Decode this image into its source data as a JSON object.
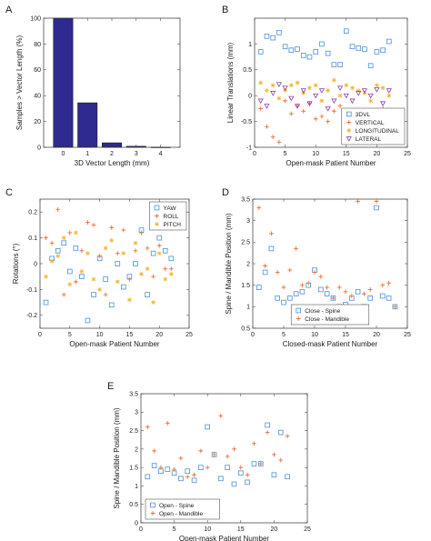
{
  "figure": {
    "panel_labels": [
      "A",
      "B",
      "C",
      "D",
      "E"
    ]
  },
  "colors": {
    "bar": "#2e2a8f",
    "spine": "#4a90d9",
    "mandible": "#e8703a",
    "threeDVL": "#4a90d9",
    "vertical": "#e8703a",
    "longitudinal": "#f0b429",
    "lateral": "#8a3fa8",
    "yaw": "#4a90d9",
    "roll": "#e8703a",
    "pitch": "#f0b429",
    "gray": "#888888"
  },
  "chart_data": [
    {
      "id": "A",
      "type": "bar",
      "xlabel": "3D Vector Length (mm)",
      "ylabel": "Samples > Vector Length (%)",
      "categories": [
        "0",
        "1",
        "2",
        "3",
        "4"
      ],
      "values": [
        100,
        34.5,
        3.5,
        0.8,
        0.1
      ],
      "xticks": [
        0,
        1,
        2,
        3,
        4
      ],
      "yticks": [
        0,
        20,
        40,
        60,
        80,
        100
      ],
      "ylim": [
        0,
        100
      ],
      "xlim": [
        -0.8,
        4.8
      ]
    },
    {
      "id": "B",
      "type": "scatter",
      "xlabel": "Open-mask Patient Number",
      "ylabel": "Linear Translations (mm)",
      "xlim": [
        0,
        25
      ],
      "ylim": [
        -1,
        1.5
      ],
      "xticks": [
        0,
        5,
        10,
        15,
        20,
        25
      ],
      "yticks": [
        -1,
        -0.5,
        0,
        0.5,
        1
      ],
      "legend_position": "bottom-right",
      "series": [
        {
          "name": "3DVL",
          "marker": "square",
          "color_key": "threeDVL",
          "x": [
            1,
            2,
            3,
            4,
            5,
            6,
            7,
            8,
            9,
            10,
            11,
            12,
            13,
            14,
            15,
            16,
            17,
            18,
            19,
            20,
            21,
            22
          ],
          "y": [
            0.85,
            1.15,
            1.12,
            1.22,
            0.95,
            0.88,
            0.9,
            0.78,
            0.75,
            0.85,
            1.0,
            0.82,
            0.6,
            0.6,
            1.25,
            0.95,
            0.92,
            0.9,
            0.58,
            0.85,
            0.88,
            1.05
          ]
        },
        {
          "name": "VERTICAL",
          "marker": "plus",
          "color_key": "vertical",
          "x": [
            1,
            2,
            3,
            4,
            5,
            6,
            7,
            8,
            9,
            10,
            11,
            12,
            13,
            14,
            15,
            16,
            17,
            18,
            19,
            20,
            21,
            22
          ],
          "y": [
            -0.25,
            -0.6,
            -0.8,
            -0.9,
            -0.1,
            -0.35,
            -0.2,
            -0.3,
            -0.15,
            -0.45,
            -0.4,
            -0.5,
            -0.3,
            -0.2,
            -0.35,
            -0.65,
            -0.4,
            -0.3,
            -0.45,
            -0.5,
            -0.25,
            -0.3
          ]
        },
        {
          "name": "LONGITUDINAL",
          "marker": "star",
          "color_key": "longitudinal",
          "x": [
            1,
            2,
            3,
            4,
            5,
            6,
            7,
            8,
            9,
            10,
            11,
            12,
            13,
            14,
            15,
            16,
            17,
            18,
            19,
            20,
            21,
            22
          ],
          "y": [
            0.25,
            0.1,
            0.2,
            -0.05,
            0.1,
            0.2,
            0.25,
            0.05,
            0.15,
            0.2,
            -0.1,
            0.1,
            0.3,
            0.0,
            0.2,
            0.15,
            0.1,
            0.05,
            -0.1,
            0.2,
            0.15,
            0.0
          ]
        },
        {
          "name": "LATERAL",
          "marker": "triangle-down",
          "color_key": "lateral",
          "x": [
            1,
            2,
            3,
            4,
            5,
            6,
            7,
            8,
            9,
            10,
            11,
            12,
            13,
            14,
            15,
            16,
            17,
            18,
            19,
            20,
            21,
            22
          ],
          "y": [
            -0.1,
            -0.2,
            0.05,
            0.22,
            0.15,
            -0.05,
            -0.2,
            0.1,
            -0.15,
            0.0,
            0.1,
            -0.25,
            -0.1,
            0.15,
            0.0,
            -0.1,
            0.05,
            0.1,
            0.0,
            0.12,
            -0.15,
            0.1
          ]
        }
      ]
    },
    {
      "id": "C",
      "type": "scatter",
      "xlabel": "Open-mask Patient Number",
      "ylabel": "Rotations (°)",
      "xlim": [
        0,
        25
      ],
      "ylim": [
        -0.25,
        0.25
      ],
      "xticks": [
        0,
        5,
        10,
        15,
        20,
        25
      ],
      "yticks": [
        -0.2,
        -0.1,
        0,
        0.1,
        0.2
      ],
      "legend_position": "top-right",
      "series": [
        {
          "name": "YAW",
          "marker": "square",
          "color_key": "yaw",
          "x": [
            1,
            2,
            3,
            4,
            5,
            6,
            7,
            8,
            9,
            10,
            11,
            12,
            13,
            14,
            15,
            16,
            17,
            18,
            19,
            20,
            21,
            22
          ],
          "y": [
            -0.15,
            0.02,
            0.05,
            0.08,
            -0.03,
            0.06,
            -0.05,
            -0.22,
            -0.12,
            0.02,
            -0.06,
            -0.16,
            0.0,
            -0.09,
            -0.05,
            0.0,
            0.13,
            -0.12,
            0.04,
            0.1,
            0.05,
            0.02
          ]
        },
        {
          "name": "ROLL",
          "marker": "plus",
          "color_key": "roll",
          "x": [
            1,
            2,
            3,
            4,
            5,
            6,
            7,
            8,
            9,
            10,
            11,
            12,
            13,
            14,
            15,
            16,
            17,
            18,
            19,
            20,
            21,
            22
          ],
          "y": [
            0.1,
            0.08,
            0.21,
            -0.12,
            0.12,
            -0.07,
            0.05,
            0.16,
            0.15,
            0.03,
            -0.12,
            0.14,
            0.04,
            0.13,
            -0.06,
            0.05,
            0.12,
            0.06,
            -0.05,
            0.07,
            -0.02,
            -0.02
          ]
        },
        {
          "name": "PITCH",
          "marker": "star",
          "color_key": "pitch",
          "x": [
            1,
            2,
            3,
            4,
            5,
            6,
            7,
            8,
            9,
            10,
            11,
            12,
            13,
            14,
            15,
            16,
            17,
            18,
            19,
            20,
            21,
            22
          ],
          "y": [
            -0.05,
            0.01,
            0.03,
            0.1,
            -0.08,
            0.12,
            -0.03,
            0.04,
            -0.06,
            -0.1,
            0.06,
            0.09,
            -0.07,
            0.04,
            -0.14,
            0.08,
            -0.04,
            -0.02,
            -0.15,
            0.04,
            -0.06,
            -0.04
          ]
        }
      ]
    },
    {
      "id": "D",
      "type": "scatter",
      "xlabel": "Closed-mask Patient Number",
      "ylabel": "Spine / Mandible Position (mm)",
      "xlim": [
        0,
        25
      ],
      "ylim": [
        0.5,
        3.5
      ],
      "xticks": [
        0,
        5,
        10,
        15,
        20,
        25
      ],
      "yticks": [
        0.5,
        1,
        1.5,
        2,
        2.5,
        3,
        3.5
      ],
      "legend_position": "bottom-center",
      "series": [
        {
          "name": "Close - Spine",
          "marker": "square",
          "color_key": "spine",
          "x": [
            1,
            2,
            3,
            4,
            5,
            6,
            7,
            8,
            9,
            10,
            11,
            12,
            13,
            14,
            15,
            16,
            17,
            18,
            19,
            20,
            21,
            22,
            23
          ],
          "y": [
            1.45,
            1.8,
            2.35,
            1.2,
            1.1,
            1.2,
            1.3,
            1.35,
            1.5,
            1.85,
            1.4,
            1.3,
            1.2,
            1.0,
            1.05,
            1.2,
            1.35,
            1.0,
            1.2,
            3.3,
            1.25,
            1.2,
            1.0
          ]
        },
        {
          "name": "Close - Mandible",
          "marker": "plus",
          "color_key": "mandible",
          "x": [
            1,
            2,
            3,
            4,
            5,
            6,
            7,
            8,
            9,
            10,
            11,
            12,
            13,
            14,
            15,
            16,
            17,
            18,
            19,
            20,
            21,
            22,
            23
          ],
          "y": [
            3.3,
            1.95,
            2.7,
            1.8,
            1.45,
            1.85,
            2.35,
            1.5,
            1.55,
            1.8,
            1.7,
            1.45,
            1.2,
            1.45,
            1.35,
            1.25,
            3.45,
            1.3,
            1.4,
            3.45,
            1.5,
            1.55,
            1.0
          ]
        }
      ]
    },
    {
      "id": "E",
      "type": "scatter",
      "xlabel": "Open-mask Patient Number",
      "ylabel": "Spine / Mandible Position (mm)",
      "xlim": [
        0,
        25
      ],
      "ylim": [
        0,
        3.5
      ],
      "xticks": [
        0,
        5,
        10,
        15,
        20,
        25
      ],
      "yticks": [
        0,
        0.5,
        1,
        1.5,
        2,
        2.5,
        3,
        3.5
      ],
      "legend_position": "bottom-left",
      "series": [
        {
          "name": "Open - Spine",
          "marker": "square",
          "color_key": "spine",
          "x": [
            1,
            2,
            3,
            4,
            5,
            6,
            7,
            8,
            9,
            10,
            11,
            12,
            13,
            14,
            15,
            16,
            17,
            18,
            19,
            20,
            21,
            22
          ],
          "y": [
            1.25,
            1.55,
            1.4,
            1.45,
            1.35,
            1.2,
            1.4,
            1.15,
            1.5,
            2.6,
            1.85,
            1.2,
            1.5,
            1.05,
            1.35,
            1.1,
            1.6,
            1.6,
            2.65,
            1.3,
            2.45,
            1.25
          ]
        },
        {
          "name": "Open - Mandible",
          "marker": "plus",
          "color_key": "mandible",
          "x": [
            1,
            2,
            3,
            4,
            5,
            6,
            7,
            8,
            9,
            10,
            11,
            12,
            13,
            14,
            15,
            16,
            17,
            18,
            19,
            20,
            21,
            22
          ],
          "y": [
            2.6,
            1.95,
            1.5,
            2.7,
            1.45,
            1.75,
            1.25,
            1.3,
            1.95,
            1.5,
            1.85,
            2.9,
            1.8,
            2.0,
            1.5,
            1.3,
            2.15,
            1.6,
            2.45,
            1.85,
            1.7,
            2.35
          ]
        }
      ]
    }
  ]
}
